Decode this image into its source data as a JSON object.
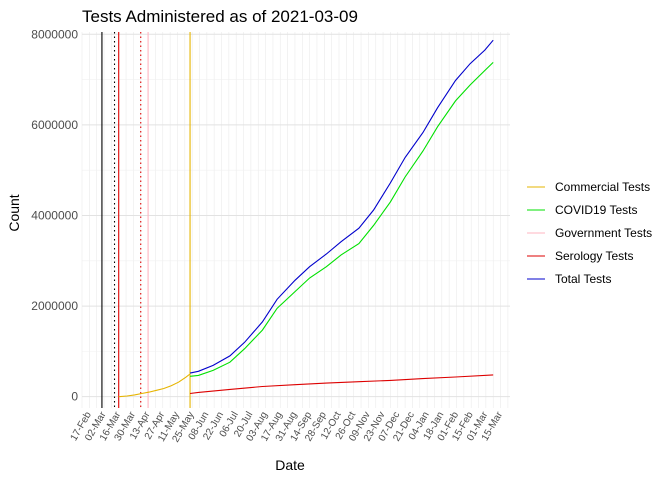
{
  "chart_data": {
    "type": "line",
    "title": "Tests Administered as of 2021-03-09",
    "xlabel": "Date",
    "ylabel": "Count",
    "x_range": [
      "2020-02-11",
      "2021-03-25"
    ],
    "ylim": [
      -250000,
      8050000
    ],
    "y_ticks": [
      0,
      2000000,
      4000000,
      6000000,
      8000000
    ],
    "y_tick_labels": [
      "0",
      "2000000",
      "4000000",
      "6000000",
      "8000000"
    ],
    "x_tick_dates": [
      "2020-02-17",
      "2020-03-02",
      "2020-03-16",
      "2020-03-30",
      "2020-04-13",
      "2020-04-27",
      "2020-05-11",
      "2020-05-25",
      "2020-06-08",
      "2020-06-22",
      "2020-07-06",
      "2020-07-20",
      "2020-08-03",
      "2020-08-17",
      "2020-08-31",
      "2020-09-14",
      "2020-09-28",
      "2020-10-12",
      "2020-10-26",
      "2020-11-09",
      "2020-11-23",
      "2020-12-07",
      "2020-12-21",
      "2021-01-04",
      "2021-01-18",
      "2021-02-01",
      "2021-02-15",
      "2021-03-01",
      "2021-03-15"
    ],
    "x_tick_labels": [
      "17-Feb",
      "02-Mar",
      "16-Mar",
      "30-Mar",
      "13-Apr",
      "27-Apr",
      "11-May",
      "25-May",
      "08-Jun",
      "22-Jun",
      "06-Jul",
      "20-Jul",
      "03-Aug",
      "17-Aug",
      "31-Aug",
      "14-Sep",
      "28-Sep",
      "12-Oct",
      "26-Oct",
      "09-Nov",
      "23-Nov",
      "07-Dec",
      "21-Dec",
      "04-Jan",
      "18-Jan",
      "01-Feb",
      "15-Feb",
      "01-Mar",
      "15-Mar"
    ],
    "grid": true,
    "legend_position": "right",
    "series": [
      {
        "name": "Commercial Tests",
        "color": "#e6b400",
        "x": [
          "2020-03-17",
          "2020-03-25",
          "2020-04-01",
          "2020-04-08",
          "2020-04-15",
          "2020-04-22",
          "2020-04-29",
          "2020-05-06",
          "2020-05-13",
          "2020-05-20",
          "2020-05-24"
        ],
        "y": [
          0,
          15000,
          40000,
          70000,
          100000,
          140000,
          180000,
          240000,
          320000,
          430000,
          500000
        ]
      },
      {
        "name": "COVID19 Tests",
        "color": "#00e000",
        "x": [
          "2020-05-24",
          "2020-06-01",
          "2020-06-15",
          "2020-07-01",
          "2020-07-15",
          "2020-08-01",
          "2020-08-15",
          "2020-09-01",
          "2020-09-15",
          "2020-10-01",
          "2020-10-15",
          "2020-11-01",
          "2020-11-15",
          "2020-12-01",
          "2020-12-15",
          "2021-01-01",
          "2021-01-15",
          "2021-02-01",
          "2021-02-15",
          "2021-03-01",
          "2021-03-09"
        ],
        "y": [
          450000,
          470000,
          580000,
          760000,
          1060000,
          1470000,
          1950000,
          2320000,
          2620000,
          2870000,
          3130000,
          3380000,
          3780000,
          4300000,
          4850000,
          5420000,
          5960000,
          6530000,
          6880000,
          7200000,
          7380000
        ]
      },
      {
        "name": "Government Tests",
        "color": "#ffb6c1",
        "x": [],
        "y": []
      },
      {
        "name": "Serology Tests",
        "color": "#dd0000",
        "x": [
          "2020-05-24",
          "2020-06-01",
          "2020-07-01",
          "2020-08-01",
          "2020-09-01",
          "2020-10-01",
          "2020-11-01",
          "2020-12-01",
          "2021-01-01",
          "2021-02-01",
          "2021-03-09"
        ],
        "y": [
          70000,
          95000,
          160000,
          225000,
          265000,
          300000,
          330000,
          360000,
          400000,
          435000,
          480000
        ]
      },
      {
        "name": "Total Tests",
        "color": "#0000cc",
        "x": [
          "2020-05-24",
          "2020-06-01",
          "2020-06-15",
          "2020-07-01",
          "2020-07-15",
          "2020-08-01",
          "2020-08-15",
          "2020-09-01",
          "2020-09-15",
          "2020-10-01",
          "2020-10-15",
          "2020-11-01",
          "2020-11-15",
          "2020-12-01",
          "2020-12-15",
          "2021-01-01",
          "2021-01-15",
          "2021-02-01",
          "2021-02-15",
          "2021-03-01",
          "2021-03-09"
        ],
        "y": [
          520000,
          560000,
          690000,
          900000,
          1200000,
          1650000,
          2150000,
          2570000,
          2870000,
          3150000,
          3420000,
          3720000,
          4120000,
          4720000,
          5280000,
          5830000,
          6380000,
          6980000,
          7350000,
          7650000,
          7870000
        ]
      }
    ],
    "vertical_lines": [
      {
        "x": "2020-03-01",
        "color": "#000000",
        "style": "solid"
      },
      {
        "x": "2020-03-13",
        "color": "#000000",
        "style": "dotted"
      },
      {
        "x": "2020-03-17",
        "color": "#dd0000",
        "style": "solid"
      },
      {
        "x": "2020-04-07",
        "color": "#dd0000",
        "style": "dotted"
      },
      {
        "x": "2020-04-14",
        "color": "#ffb6c1",
        "style": "solid"
      },
      {
        "x": "2020-05-24",
        "color": "#e6b400",
        "style": "solid"
      }
    ]
  }
}
